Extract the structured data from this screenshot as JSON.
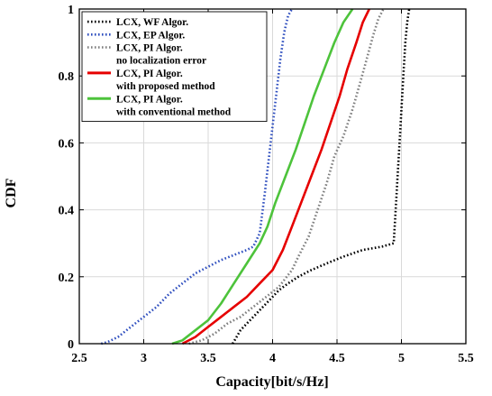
{
  "chart_data": {
    "type": "line",
    "title": "",
    "xlabel": "Capacity[bit/s/Hz]",
    "ylabel": "CDF",
    "xlim": [
      2.5,
      5.5
    ],
    "ylim": [
      0,
      1
    ],
    "xticks": [
      2.5,
      3,
      3.5,
      4,
      4.5,
      5,
      5.5
    ],
    "xtick_labels": [
      "2.5",
      "3",
      "3.5",
      "4",
      "4.5",
      "5",
      "5.5"
    ],
    "yticks": [
      0,
      0.2,
      0.4,
      0.6,
      0.8,
      1
    ],
    "ytick_labels": [
      "0",
      "0.2",
      "0.4",
      "0.6",
      "0.8",
      "1"
    ],
    "grid": true,
    "legend_position": "top-left",
    "series": [
      {
        "name": "LCX, WF Algor.",
        "legend_lines": [
          "LCX, WF Algor."
        ],
        "color": "#000000",
        "style": "dotted",
        "points": [
          [
            3.69,
            0
          ],
          [
            3.72,
            0.02
          ],
          [
            3.75,
            0.04
          ],
          [
            3.8,
            0.06
          ],
          [
            3.85,
            0.08
          ],
          [
            3.9,
            0.1
          ],
          [
            3.95,
            0.12
          ],
          [
            4.0,
            0.14
          ],
          [
            4.05,
            0.16
          ],
          [
            4.12,
            0.18
          ],
          [
            4.2,
            0.2
          ],
          [
            4.3,
            0.22
          ],
          [
            4.42,
            0.24
          ],
          [
            4.55,
            0.26
          ],
          [
            4.7,
            0.28
          ],
          [
            4.85,
            0.29
          ],
          [
            4.94,
            0.3
          ],
          [
            4.955,
            0.4
          ],
          [
            4.97,
            0.5
          ],
          [
            4.985,
            0.6
          ],
          [
            5.0,
            0.7
          ],
          [
            5.015,
            0.8
          ],
          [
            5.03,
            0.9
          ],
          [
            5.045,
            0.96
          ],
          [
            5.06,
            1.0
          ]
        ]
      },
      {
        "name": "LCX, EP Algor.",
        "legend_lines": [
          "LCX, EP Algor."
        ],
        "color": "#2f4fbf",
        "style": "dotted",
        "points": [
          [
            2.67,
            0
          ],
          [
            2.72,
            0.005
          ],
          [
            2.8,
            0.02
          ],
          [
            2.9,
            0.05
          ],
          [
            3.0,
            0.08
          ],
          [
            3.1,
            0.11
          ],
          [
            3.2,
            0.15
          ],
          [
            3.3,
            0.18
          ],
          [
            3.4,
            0.21
          ],
          [
            3.5,
            0.23
          ],
          [
            3.6,
            0.25
          ],
          [
            3.7,
            0.265
          ],
          [
            3.8,
            0.28
          ],
          [
            3.85,
            0.29
          ],
          [
            3.9,
            0.33
          ],
          [
            3.94,
            0.45
          ],
          [
            3.97,
            0.55
          ],
          [
            4.0,
            0.65
          ],
          [
            4.03,
            0.75
          ],
          [
            4.06,
            0.85
          ],
          [
            4.09,
            0.93
          ],
          [
            4.12,
            0.98
          ],
          [
            4.15,
            1.0
          ]
        ]
      },
      {
        "name": "LCX, PI Algor. no localization error",
        "legend_lines": [
          "LCX, PI Algor.",
          "no localization error"
        ],
        "color": "#7f7f7f",
        "style": "dotted",
        "points": [
          [
            3.35,
            0
          ],
          [
            3.45,
            0.01
          ],
          [
            3.55,
            0.03
          ],
          [
            3.65,
            0.06
          ],
          [
            3.75,
            0.08
          ],
          [
            3.85,
            0.11
          ],
          [
            3.95,
            0.14
          ],
          [
            4.05,
            0.17
          ],
          [
            4.15,
            0.22
          ],
          [
            4.2,
            0.26
          ],
          [
            4.28,
            0.32
          ],
          [
            4.35,
            0.4
          ],
          [
            4.42,
            0.48
          ],
          [
            4.48,
            0.56
          ],
          [
            4.55,
            0.62
          ],
          [
            4.62,
            0.7
          ],
          [
            4.68,
            0.78
          ],
          [
            4.73,
            0.85
          ],
          [
            4.78,
            0.92
          ],
          [
            4.82,
            0.97
          ],
          [
            4.86,
            1.0
          ]
        ]
      },
      {
        "name": "LCX, PI Algor. with proposed method",
        "legend_lines": [
          "LCX, PI Algor.",
          "with proposed method"
        ],
        "color": "#e60000",
        "style": "solid",
        "points": [
          [
            3.3,
            0
          ],
          [
            3.4,
            0.02
          ],
          [
            3.5,
            0.05
          ],
          [
            3.6,
            0.08
          ],
          [
            3.7,
            0.11
          ],
          [
            3.8,
            0.14
          ],
          [
            3.9,
            0.18
          ],
          [
            4.0,
            0.22
          ],
          [
            4.08,
            0.28
          ],
          [
            4.15,
            0.35
          ],
          [
            4.22,
            0.42
          ],
          [
            4.3,
            0.5
          ],
          [
            4.38,
            0.58
          ],
          [
            4.45,
            0.66
          ],
          [
            4.52,
            0.74
          ],
          [
            4.58,
            0.82
          ],
          [
            4.65,
            0.9
          ],
          [
            4.7,
            0.96
          ],
          [
            4.75,
            1.0
          ]
        ]
      },
      {
        "name": "LCX, PI Algor. with conventional method",
        "legend_lines": [
          "LCX, PI Algor.",
          "with conventional method"
        ],
        "color": "#4dc33b",
        "style": "solid",
        "points": [
          [
            3.22,
            0
          ],
          [
            3.3,
            0.01
          ],
          [
            3.4,
            0.04
          ],
          [
            3.5,
            0.07
          ],
          [
            3.6,
            0.12
          ],
          [
            3.7,
            0.18
          ],
          [
            3.8,
            0.24
          ],
          [
            3.9,
            0.3
          ],
          [
            3.96,
            0.35
          ],
          [
            4.02,
            0.42
          ],
          [
            4.1,
            0.5
          ],
          [
            4.18,
            0.58
          ],
          [
            4.25,
            0.66
          ],
          [
            4.32,
            0.74
          ],
          [
            4.4,
            0.82
          ],
          [
            4.48,
            0.9
          ],
          [
            4.55,
            0.96
          ],
          [
            4.62,
            1.0
          ]
        ]
      }
    ]
  }
}
